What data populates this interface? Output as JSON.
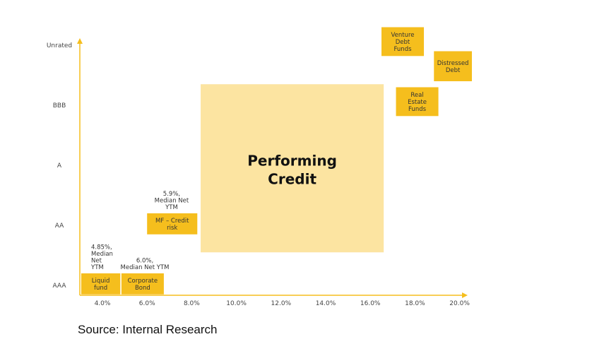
{
  "chart_data": {
    "type": "scatter",
    "title": "",
    "xlabel": "",
    "ylabel": "",
    "x_ticks": [
      "4.0%",
      "6.0%",
      "8.0%",
      "10.0%",
      "12.0%",
      "14.0%",
      "16.0%",
      "18.0%",
      "20.0%"
    ],
    "y_ticks": [
      "AAA",
      "AA",
      "A",
      "BBB",
      "Unrated"
    ],
    "colors": {
      "box": "#f5be1d",
      "region": "#fce4a1",
      "axis": "#f5be1d"
    },
    "items": [
      {
        "label": [
          "Liquid",
          "fund"
        ],
        "x": [
          3.05,
          4.8
        ],
        "y": [
          -0.15,
          0.2
        ]
      },
      {
        "label": [
          "Corporate",
          "Bond"
        ],
        "x": [
          4.85,
          6.75
        ],
        "y": [
          -0.15,
          0.2
        ]
      },
      {
        "label": [
          "MF – Credit",
          "risk"
        ],
        "x": [
          6.0,
          8.25
        ],
        "y": [
          0.85,
          1.2
        ]
      },
      {
        "label": [
          "Real",
          "Estate",
          "Funds"
        ],
        "x": [
          17.15,
          19.05
        ],
        "y": [
          2.82,
          3.3
        ]
      },
      {
        "label": [
          "Venture",
          "Debt",
          "Funds"
        ],
        "x": [
          16.5,
          18.4
        ],
        "y": [
          3.82,
          4.3
        ]
      },
      {
        "label": [
          "Distressed",
          "Debt"
        ],
        "x": [
          18.85,
          20.55
        ],
        "y": [
          3.4,
          3.9
        ]
      }
    ],
    "region": {
      "label": [
        "Performing",
        "Credit"
      ],
      "x": [
        8.4,
        16.6
      ],
      "y": [
        0.55,
        3.35
      ]
    },
    "annotations": [
      {
        "lines": [
          "4.85%,",
          "Median",
          "Net",
          "YTM"
        ],
        "x": 3.5,
        "y": 0.25
      },
      {
        "lines": [
          "6.0%,",
          "Median Net YTM"
        ],
        "x": 5.9,
        "y": 0.25
      },
      {
        "lines": [
          "5.9%,",
          "Median Net",
          "YTM"
        ],
        "x": 7.1,
        "y": 1.25
      }
    ]
  },
  "source": "Source: Internal Research"
}
